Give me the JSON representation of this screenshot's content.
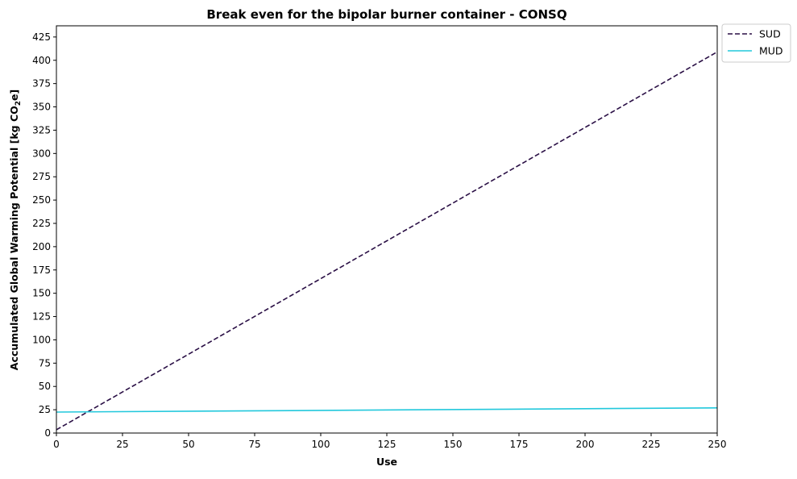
{
  "chart_data": {
    "type": "line",
    "title": "Break even for the bipolar burner container - CONSQ",
    "xlabel": "Use",
    "ylabel_main": "Accumulated Global Warming Potential [kg CO",
    "ylabel_sub": "2",
    "ylabel_end": "e]",
    "xlim": [
      0,
      250
    ],
    "ylim": [
      0,
      437
    ],
    "x_ticks": [
      0,
      25,
      50,
      75,
      100,
      125,
      150,
      175,
      200,
      225,
      250
    ],
    "y_ticks": [
      0,
      25,
      50,
      75,
      100,
      125,
      150,
      175,
      200,
      225,
      250,
      275,
      300,
      325,
      350,
      375,
      400,
      425
    ],
    "grid": false,
    "legend_placement": "outside-top-right",
    "series": [
      {
        "name": "SUD",
        "color": "#2a0f45",
        "style": "dashed",
        "x": [
          0,
          250
        ],
        "y": [
          3.5,
          409
        ]
      },
      {
        "name": "MUD",
        "color": "#22c8dc",
        "style": "solid",
        "x": [
          0,
          250
        ],
        "y": [
          22.5,
          27
        ]
      }
    ]
  }
}
